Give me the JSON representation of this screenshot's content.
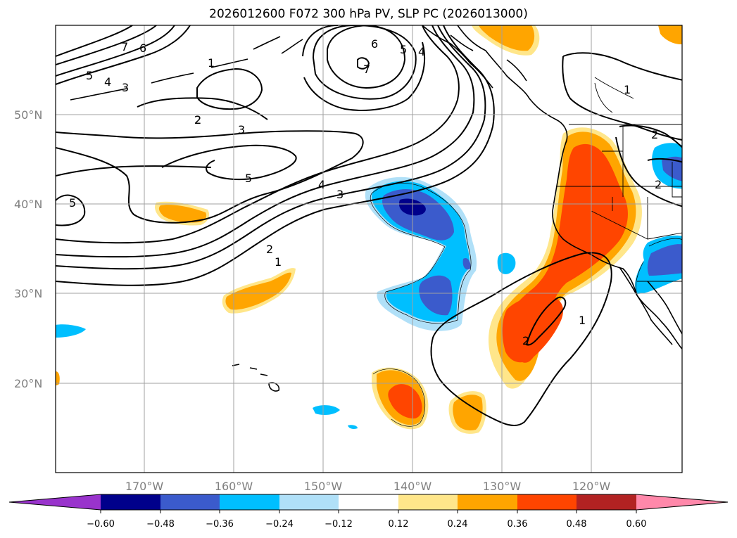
{
  "title": "2026012600 F072 300 hPa PV, SLP PC (2026013000)",
  "lat_labels": [
    "50°N",
    "40°N",
    "30°N",
    "20°N"
  ],
  "lon_labels": [
    "170°W",
    "160°W",
    "150°W",
    "140°W",
    "130°W",
    "120°W"
  ],
  "colorbar": {
    "colors": [
      "#9933cc",
      "#00008b",
      "#3b5bcc",
      "#00bfff",
      "#b0e0f8",
      "#ffffff",
      "#ffe68a",
      "#ffa500",
      "#ff4500",
      "#b22222",
      "#ff88aa"
    ],
    "tick_labels": [
      "−0.60",
      "−0.48",
      "−0.36",
      "−0.24",
      "−0.12",
      "0.12",
      "0.24",
      "0.36",
      "0.48",
      "0.60"
    ]
  },
  "contour_labels": [
    "7",
    "6",
    "5",
    "4",
    "3",
    "2",
    "1",
    "6",
    "5",
    "4",
    "7",
    "2",
    "3",
    "5",
    "5",
    "4",
    "3",
    "2",
    "1",
    "1",
    "2",
    "1",
    "2",
    "2"
  ]
}
